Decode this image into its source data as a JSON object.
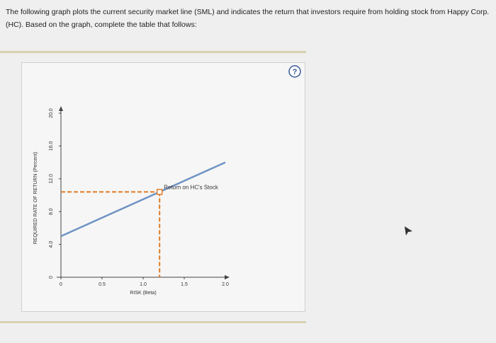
{
  "intro": [
    "The following graph plots the current security market line (SML) and indicates the return that investors require from holding stock from Happy Corp.",
    "(HC). Based on the graph, complete the table that follows:"
  ],
  "chart_data": {
    "type": "line",
    "x_label": "RISK (Beta)",
    "y_label": "REQUIRED RATE OF RETURN (Percent)",
    "xlim": [
      0,
      2
    ],
    "ylim": [
      0,
      20
    ],
    "xticks": [
      0,
      0.5,
      {
        "value": 1,
        "label": "1.0"
      },
      1.5,
      {
        "value": 2,
        "label": "2.0"
      }
    ],
    "yticks": [
      0,
      {
        "value": 4,
        "label": "4.0"
      },
      {
        "value": 8,
        "label": "8.0"
      },
      {
        "value": 12,
        "label": "12.0"
      },
      {
        "value": 16,
        "label": "16.0"
      },
      {
        "value": 20,
        "label": "20.0"
      }
    ],
    "series": [
      {
        "name": "SML",
        "color": "#6f93c4",
        "x": [
          0,
          2
        ],
        "values": [
          5,
          14
        ]
      }
    ],
    "points": [
      {
        "name": "Return on HC's Stock",
        "color": "#e07b26",
        "x": 1.2,
        "y": 10.4
      }
    ]
  }
}
